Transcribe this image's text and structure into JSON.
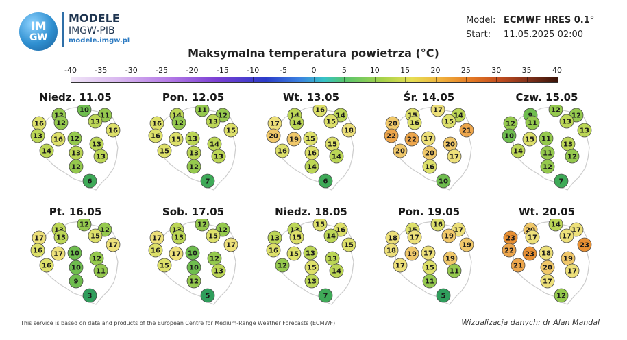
{
  "logo": {
    "line1": "IM",
    "line2": "GW",
    "brand_name": "MODELE",
    "brand_org": "IMGW-PIB",
    "brand_url": "modele.imgw.pl"
  },
  "meta": {
    "model_label": "Model:",
    "model_value": "ECMWF HRES 0.1°",
    "start_label": "Start:",
    "start_value": "11.05.2025 02:00"
  },
  "title": "Maksymalna temperatura powietrza (°C)",
  "scale": {
    "ticks": [
      "-40",
      "-35",
      "-30",
      "-25",
      "-20",
      "-15",
      "-10",
      "-5",
      "0",
      "5",
      "10",
      "15",
      "20",
      "25",
      "30",
      "35",
      "40"
    ],
    "min": -40,
    "max": 40
  },
  "color_stops": [
    {
      "t": 3,
      "color": "#2f9e5c"
    },
    {
      "t": 6,
      "color": "#3faa58"
    },
    {
      "t": 9,
      "color": "#6fbd4f"
    },
    {
      "t": 11,
      "color": "#95c94e"
    },
    {
      "t": 13,
      "color": "#bcd656"
    },
    {
      "t": 15,
      "color": "#dde06a"
    },
    {
      "t": 17,
      "color": "#ede07a"
    },
    {
      "t": 19,
      "color": "#f0c86a"
    },
    {
      "t": 21,
      "color": "#eda64c"
    },
    {
      "t": 23,
      "color": "#e78f33"
    }
  ],
  "days": [
    {
      "label": "Niedz. 11.05",
      "values": [
        12,
        10,
        11,
        16,
        12,
        13,
        16,
        13,
        16,
        12,
        13,
        14,
        13,
        13,
        12,
        6
      ]
    },
    {
      "label": "Pon. 12.05",
      "values": [
        14,
        11,
        12,
        16,
        12,
        13,
        15,
        16,
        15,
        13,
        14,
        15,
        13,
        13,
        12,
        7
      ]
    },
    {
      "label": "Wt. 13.05",
      "values": [
        14,
        16,
        14,
        17,
        14,
        15,
        18,
        20,
        19,
        15,
        15,
        16,
        16,
        14,
        14,
        6
      ]
    },
    {
      "label": "Śr. 14.05",
      "values": [
        15,
        17,
        14,
        20,
        16,
        15,
        21,
        22,
        22,
        17,
        20,
        20,
        20,
        17,
        16,
        10
      ]
    },
    {
      "label": "Czw. 15.05",
      "values": [
        9,
        12,
        12,
        12,
        11,
        13,
        13,
        10,
        15,
        11,
        13,
        14,
        11,
        12,
        12,
        7
      ]
    },
    {
      "label": "Pt. 16.05",
      "values": [
        13,
        12,
        12,
        17,
        13,
        15,
        17,
        16,
        17,
        10,
        12,
        16,
        10,
        11,
        9,
        3
      ]
    },
    {
      "label": "Sob. 17.05",
      "values": [
        13,
        12,
        12,
        17,
        13,
        15,
        17,
        16,
        17,
        10,
        12,
        15,
        10,
        13,
        12,
        5
      ]
    },
    {
      "label": "Niedz. 18.05",
      "values": [
        13,
        15,
        16,
        13,
        15,
        14,
        15,
        16,
        15,
        13,
        13,
        12,
        15,
        14,
        13,
        7
      ]
    },
    {
      "label": "Pon. 19.05",
      "values": [
        15,
        16,
        17,
        18,
        17,
        19,
        19,
        18,
        19,
        17,
        19,
        17,
        15,
        11,
        11,
        5
      ]
    },
    {
      "label": "Wt. 20.05",
      "values": [
        20,
        14,
        17,
        23,
        17,
        17,
        23,
        22,
        23,
        18,
        19,
        21,
        20,
        17,
        17,
        12
      ]
    }
  ],
  "footer_text": "This service is based on data and products of the European Centre for Medium-Range Weather Forecasts (ECMWF)",
  "credit": "Wizualizacja danych: dr Alan Mandal"
}
